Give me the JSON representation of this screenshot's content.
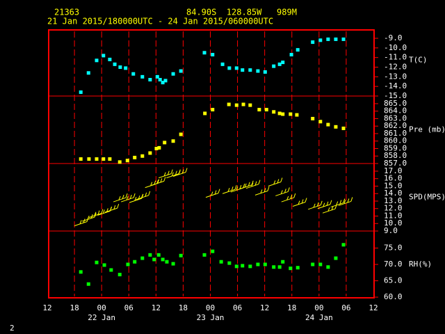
{
  "chart_data": {
    "type": "scatter",
    "title": "21363",
    "subtitle": "84.90S  128.85W   989M",
    "period": "21 Jan 2015/180000UTC - 24 Jan 2015/060000UTC",
    "page_number": "2",
    "xlim": [
      12,
      84
    ],
    "xticks": [
      {
        "value": 12,
        "label": "12"
      },
      {
        "value": 18,
        "label": "18"
      },
      {
        "value": 24,
        "label": "00"
      },
      {
        "value": 30,
        "label": "06"
      },
      {
        "value": 36,
        "label": "12"
      },
      {
        "value": 42,
        "label": "18"
      },
      {
        "value": 48,
        "label": "00"
      },
      {
        "value": 54,
        "label": "06"
      },
      {
        "value": 60,
        "label": "12"
      },
      {
        "value": 66,
        "label": "18"
      },
      {
        "value": 72,
        "label": "00"
      },
      {
        "value": 78,
        "label": "06"
      },
      {
        "value": 84,
        "label": "12"
      }
    ],
    "annotations": [
      {
        "text": "22 Jan",
        "x": 24
      },
      {
        "text": "23 Jan",
        "x": 48
      },
      {
        "text": "24 Jan",
        "x": 72
      }
    ],
    "panels": [
      {
        "ylabel": "T(C)",
        "color": "#00ffff",
        "marker": "square",
        "x": [
          19.4,
          21.1,
          22.9,
          24.4,
          25.8,
          26.9,
          28.1,
          29.3,
          31.0,
          33.0,
          34.7,
          36.3,
          36.9,
          37.5,
          38.1,
          39.8,
          41.5,
          46.7,
          48.5,
          50.7,
          52.2,
          53.8,
          55.1,
          56.8,
          58.5,
          60.1,
          62.0,
          63.3,
          64.0,
          65.9,
          67.3,
          70.6,
          72.3,
          74.0,
          75.7,
          77.4
        ],
        "values": [
          -14.6,
          -12.6,
          -11.3,
          -10.8,
          -11.2,
          -11.7,
          -12.0,
          -12.1,
          -12.7,
          -13.0,
          -13.3,
          -13.0,
          -13.3,
          -13.6,
          -13.4,
          -12.7,
          -12.4,
          -10.5,
          -10.7,
          -11.7,
          -12.1,
          -12.1,
          -12.3,
          -12.3,
          -12.4,
          -12.5,
          -11.9,
          -11.7,
          -11.5,
          -10.7,
          -10.2,
          -9.4,
          -9.2,
          -9.1,
          -9.1,
          -9.1
        ],
        "ylim": [
          -15,
          -8.13
        ],
        "yticks": [
          {
            "value": -9,
            "label": "-9.0"
          },
          {
            "value": -10,
            "label": "-10.0"
          },
          {
            "value": -11,
            "label": "-11.0"
          },
          {
            "value": -12,
            "label": "-12.0"
          },
          {
            "value": -13,
            "label": "-13.0"
          },
          {
            "value": -14,
            "label": "-14.0"
          },
          {
            "value": -15,
            "label": "-15.0"
          }
        ]
      },
      {
        "ylabel": "Pre (mb)",
        "color": "#ffff00",
        "marker": "square",
        "x": [
          19.4,
          21.2,
          22.9,
          24.4,
          25.8,
          28.0,
          29.7,
          31.3,
          33.0,
          34.7,
          36.1,
          36.7,
          37.9,
          39.8,
          41.5,
          46.8,
          48.5,
          52.1,
          53.8,
          55.3,
          56.8,
          58.8,
          60.4,
          62.0,
          63.3,
          64.0,
          65.7,
          67.1,
          70.6,
          72.3,
          74.0,
          75.7,
          77.4
        ],
        "values": [
          857.6,
          857.6,
          857.6,
          857.6,
          857.6,
          857.2,
          857.4,
          857.8,
          858.0,
          858.4,
          859.0,
          859.1,
          859.8,
          860.0,
          860.9,
          863.7,
          864.2,
          864.9,
          864.8,
          864.9,
          864.8,
          864.2,
          864.2,
          863.9,
          863.7,
          863.6,
          863.6,
          863.5,
          863.0,
          862.6,
          862.2,
          861.9,
          861.7
        ],
        "ylim": [
          857,
          866.02
        ],
        "yticks": [
          {
            "value": 865,
            "label": "865.0"
          },
          {
            "value": 864,
            "label": "864.0"
          },
          {
            "value": 863,
            "label": "863.0"
          },
          {
            "value": 862,
            "label": "862.0"
          },
          {
            "value": 861,
            "label": "861.0"
          },
          {
            "value": 860,
            "label": "860.0"
          },
          {
            "value": 859,
            "label": "859.0"
          },
          {
            "value": 858,
            "label": "858.0"
          },
          {
            "value": 857,
            "label": "857.0"
          }
        ]
      },
      {
        "ylabel": "SPD(MPS)",
        "color": "#ffff00",
        "marker": "barb",
        "x": [
          18.0,
          19.7,
          21.2,
          23.1,
          24.7,
          26.6,
          28.3,
          30.1,
          31.6,
          33.6,
          35.0,
          36.6,
          38.3,
          39.8,
          47.0,
          50.7,
          52.5,
          54.4,
          55.9,
          57.9,
          60.8,
          62.4,
          63.7,
          66.2,
          69.6,
          71.7,
          72.8,
          74.6,
          76.3
        ],
        "values": [
          9.7,
          10.3,
          10.8,
          11.1,
          11.5,
          12.9,
          12.9,
          12.8,
          13.2,
          14.8,
          15.1,
          16.1,
          16.1,
          16.3,
          13.5,
          14.0,
          14.2,
          14.6,
          14.7,
          13.8,
          15.0,
          13.7,
          12.9,
          12.3,
          11.9,
          12.0,
          11.4,
          12.2,
          12.4
        ],
        "ylim": [
          9,
          18.02
        ],
        "yticks": [
          {
            "value": 17,
            "label": "17.0"
          },
          {
            "value": 16,
            "label": "16.0"
          },
          {
            "value": 15,
            "label": "15.0"
          },
          {
            "value": 14,
            "label": "14.0"
          },
          {
            "value": 13,
            "label": "13.0"
          },
          {
            "value": 12,
            "label": "12.0"
          },
          {
            "value": 11,
            "label": "11.0"
          },
          {
            "value": 10,
            "label": "10.0"
          },
          {
            "value": 9,
            "label": "9.0"
          }
        ]
      },
      {
        "ylabel": "RH(%)",
        "color": "#00ff00",
        "marker": "square",
        "x": [
          19.4,
          21.1,
          22.9,
          24.6,
          26.1,
          28.0,
          29.8,
          31.3,
          33.0,
          34.7,
          35.6,
          36.6,
          37.5,
          38.4,
          39.8,
          41.5,
          46.7,
          48.5,
          50.4,
          52.2,
          53.8,
          55.1,
          56.8,
          58.5,
          60.1,
          62.0,
          63.3,
          64.0,
          65.7,
          67.3,
          70.6,
          72.3,
          74.0,
          75.7,
          77.4
        ],
        "values": [
          67.7,
          64.0,
          70.6,
          69.8,
          68.3,
          66.9,
          70.0,
          70.8,
          71.9,
          72.9,
          71.5,
          72.9,
          71.5,
          70.8,
          70.2,
          72.7,
          72.9,
          74.0,
          70.8,
          70.4,
          69.4,
          69.6,
          69.4,
          70.0,
          70.0,
          69.2,
          69.2,
          70.8,
          68.8,
          69.0,
          70.0,
          70.0,
          69.2,
          71.9,
          76.0
        ],
        "ylim": [
          59.8,
          80.2
        ],
        "yticks": [
          {
            "value": 75,
            "label": "75.0"
          },
          {
            "value": 70,
            "label": "70.0"
          },
          {
            "value": 65,
            "label": "65.0"
          },
          {
            "value": 60,
            "label": "60.0"
          }
        ]
      }
    ]
  }
}
